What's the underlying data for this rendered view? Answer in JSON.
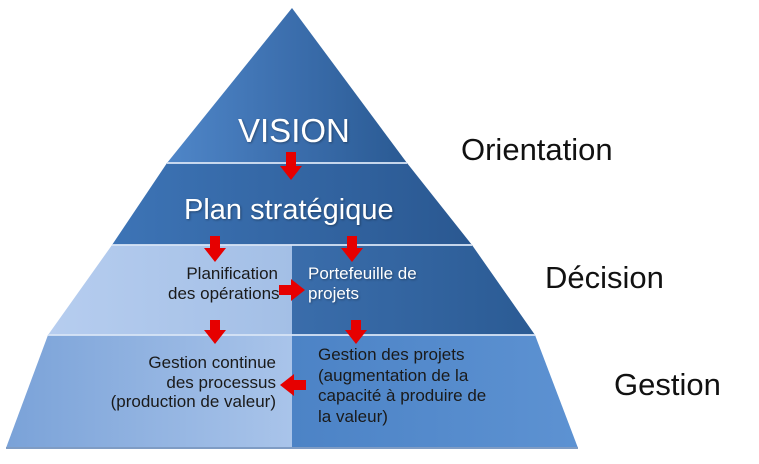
{
  "pyramid": {
    "vision": "VISION",
    "plan": "Plan stratégique",
    "planification": [
      "Planification",
      "des opérations"
    ],
    "portefeuille": [
      "Portefeuille de",
      "projets"
    ],
    "gestion_continue": [
      "Gestion continue",
      "des processus",
      "(production de valeur)"
    ],
    "gestion_projets": [
      "Gestion des projets",
      "(augmentation de la",
      "capacité à produire de",
      "la valeur)"
    ]
  },
  "levels": {
    "orientation": "Orientation",
    "decision": "Décision",
    "gestion": "Gestion"
  },
  "colors": {
    "dark_blue": "#2c5c94",
    "mid_blue": "#4a7fc1",
    "light_blue": "#a9c4ea",
    "arrow_red": "#e60000"
  }
}
